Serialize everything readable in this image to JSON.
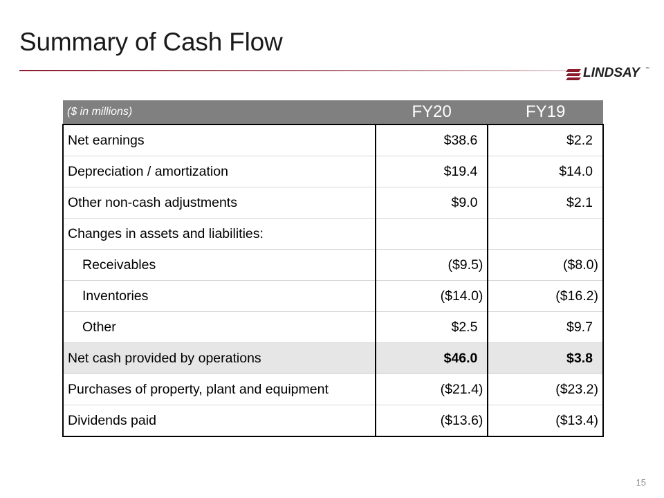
{
  "slide": {
    "title": "Summary of Cash Flow",
    "page_number": "15",
    "logo_text": "LINDSAY",
    "logo_tm": "™",
    "accent_color": "#8b1a2b"
  },
  "table": {
    "header": {
      "label": "($ in millions)",
      "col1": "FY20",
      "col2": "FY19"
    },
    "rows": [
      {
        "label": "Net earnings",
        "fy20": "$38.6",
        "fy19": "$2.2"
      },
      {
        "label": "Depreciation / amortization",
        "fy20": "$19.4",
        "fy19": "$14.0"
      },
      {
        "label": "Other non-cash adjustments",
        "fy20": "$9.0",
        "fy19": "$2.1"
      },
      {
        "label": "Changes in assets and liabilities:",
        "fy20": "",
        "fy19": ""
      },
      {
        "label": "Receivables",
        "fy20": "($9.5)",
        "fy19": "($8.0)"
      },
      {
        "label": "Inventories",
        "fy20": "($14.0)",
        "fy19": "($16.2)"
      },
      {
        "label": "Other",
        "fy20": "$2.5",
        "fy19": "$9.7"
      },
      {
        "label": "Net cash provided by operations",
        "fy20": "$46.0",
        "fy19": "$3.8"
      },
      {
        "label": "Purchases of property, plant and equipment",
        "fy20": "($21.4)",
        "fy19": "($23.2)"
      },
      {
        "label": "Dividends paid",
        "fy20": "($13.6)",
        "fy19": "($13.4)"
      }
    ]
  }
}
